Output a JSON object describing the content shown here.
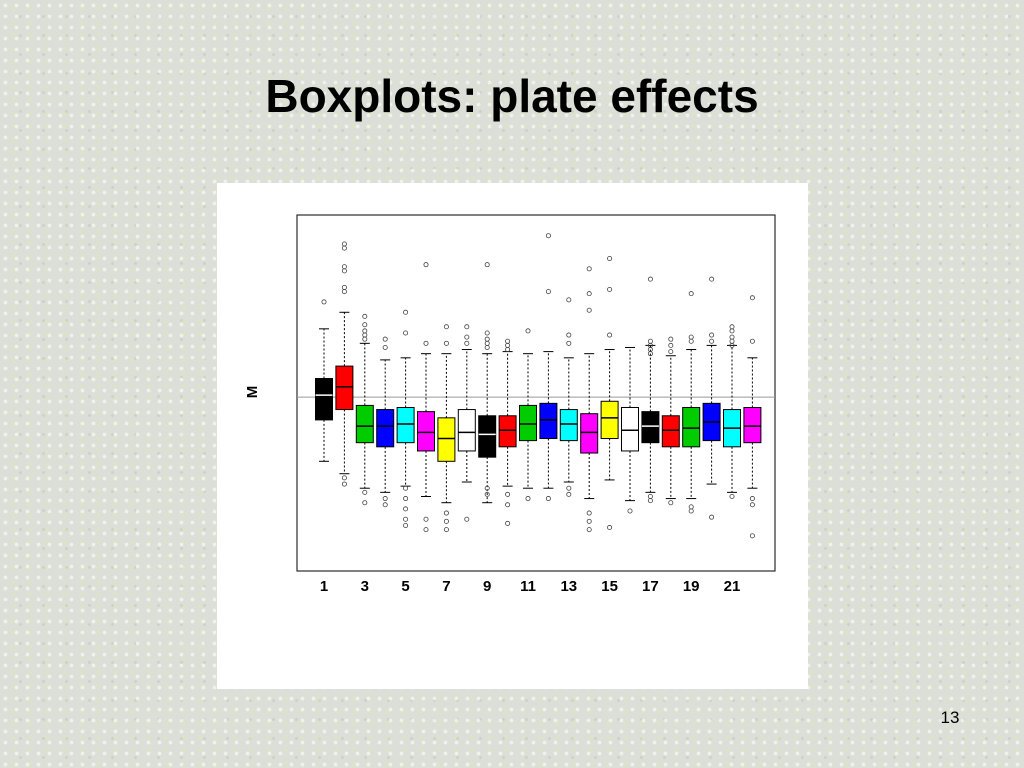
{
  "slide": {
    "title": "Boxplots: plate effects",
    "page_number": "13"
  },
  "chart_data": {
    "type": "boxplot",
    "title": "",
    "xlabel": "",
    "ylabel": "M",
    "ylim": [
      -4.2,
      4.4
    ],
    "reference_line": 0,
    "tick_labels": [
      "1",
      "3",
      "5",
      "7",
      "9",
      "11",
      "13",
      "15",
      "17",
      "19",
      "21"
    ],
    "series": [
      {
        "plate": 1,
        "color": "#000000",
        "min": -1.55,
        "q1": -0.55,
        "median": 0.05,
        "q3": 0.45,
        "max": 1.65,
        "outliers": [
          2.3
        ]
      },
      {
        "plate": 2,
        "color": "#ff0000",
        "min": -1.85,
        "q1": -0.3,
        "median": 0.25,
        "q3": 0.75,
        "max": 2.05,
        "outliers": [
          3.7,
          3.6,
          3.15,
          3.05,
          2.65,
          2.55,
          -1.95,
          -2.1
        ]
      },
      {
        "plate": 3,
        "color": "#00cc00",
        "min": -2.2,
        "q1": -1.1,
        "median": -0.7,
        "q3": -0.2,
        "max": 1.3,
        "outliers": [
          1.95,
          1.75,
          1.6,
          1.5,
          1.4,
          -2.3,
          -2.55
        ]
      },
      {
        "plate": 4,
        "color": "#0000ff",
        "min": -2.3,
        "q1": -1.2,
        "median": -0.7,
        "q3": -0.3,
        "max": 0.9,
        "outliers": [
          1.4,
          1.2,
          -2.45,
          -2.6
        ]
      },
      {
        "plate": 5,
        "color": "#00ffff",
        "min": -2.15,
        "q1": -1.1,
        "median": -0.65,
        "q3": -0.25,
        "max": 0.95,
        "outliers": [
          2.05,
          1.55,
          -2.2,
          -2.45,
          -2.7,
          -2.95,
          -3.1
        ]
      },
      {
        "plate": 6,
        "color": "#ff00ff",
        "min": -2.4,
        "q1": -1.3,
        "median": -0.85,
        "q3": -0.35,
        "max": 1.05,
        "outliers": [
          3.2,
          1.3,
          -2.95,
          -3.2
        ]
      },
      {
        "plate": 7,
        "color": "#ffff00",
        "min": -2.55,
        "q1": -1.55,
        "median": -1.0,
        "q3": -0.5,
        "max": 1.05,
        "outliers": [
          1.7,
          1.3,
          -2.8,
          -3.0,
          -3.2
        ]
      },
      {
        "plate": 8,
        "color": "#ffffff",
        "min": -2.05,
        "q1": -1.3,
        "median": -0.85,
        "q3": -0.3,
        "max": 1.15,
        "outliers": [
          1.7,
          1.45,
          1.3,
          -2.95
        ]
      },
      {
        "plate": 9,
        "color": "#000000",
        "min": -2.55,
        "q1": -1.45,
        "median": -0.9,
        "q3": -0.45,
        "max": 1.05,
        "outliers": [
          3.2,
          1.55,
          1.4,
          1.3,
          1.2,
          -2.2,
          -2.35
        ]
      },
      {
        "plate": 10,
        "color": "#ff0000",
        "min": -2.15,
        "q1": -1.2,
        "median": -0.8,
        "q3": -0.45,
        "max": 1.1,
        "outliers": [
          1.35,
          1.25,
          1.15,
          -2.35,
          -2.6,
          -3.05
        ]
      },
      {
        "plate": 11,
        "color": "#00cc00",
        "min": -2.2,
        "q1": -1.05,
        "median": -0.65,
        "q3": -0.2,
        "max": 1.05,
        "outliers": [
          1.6,
          -2.45
        ]
      },
      {
        "plate": 12,
        "color": "#0000ff",
        "min": -2.2,
        "q1": -1.0,
        "median": -0.55,
        "q3": -0.15,
        "max": 1.1,
        "outliers": [
          3.9,
          2.55,
          -2.45
        ]
      },
      {
        "plate": 13,
        "color": "#00ffff",
        "min": -2.05,
        "q1": -1.05,
        "median": -0.65,
        "q3": -0.3,
        "max": 0.95,
        "outliers": [
          2.35,
          1.5,
          1.3,
          -2.2,
          -2.35
        ]
      },
      {
        "plate": 14,
        "color": "#ff00ff",
        "min": -2.45,
        "q1": -1.35,
        "median": -0.85,
        "q3": -0.4,
        "max": 1.05,
        "outliers": [
          3.1,
          2.5,
          2.1,
          -2.8,
          -3.0,
          -3.2
        ]
      },
      {
        "plate": 15,
        "color": "#ffff00",
        "min": -2.0,
        "q1": -1.0,
        "median": -0.5,
        "q3": -0.1,
        "max": 1.15,
        "outliers": [
          3.35,
          2.6,
          1.5,
          -3.15
        ]
      },
      {
        "plate": 16,
        "color": "#ffffff",
        "min": -2.5,
        "q1": -1.3,
        "median": -0.8,
        "q3": -0.25,
        "max": 1.2,
        "outliers": [
          -2.75
        ]
      },
      {
        "plate": 17,
        "color": "#000000",
        "min": -2.3,
        "q1": -1.1,
        "median": -0.7,
        "q3": -0.35,
        "max": 1.25,
        "outliers": [
          2.85,
          1.35,
          1.25,
          1.15,
          1.05,
          -2.4,
          -2.5
        ]
      },
      {
        "plate": 18,
        "color": "#ff0000",
        "min": -2.45,
        "q1": -1.2,
        "median": -0.8,
        "q3": -0.45,
        "max": 1.0,
        "outliers": [
          1.4,
          1.25,
          1.1,
          -2.55
        ]
      },
      {
        "plate": 19,
        "color": "#00cc00",
        "min": -2.45,
        "q1": -1.2,
        "median": -0.75,
        "q3": -0.25,
        "max": 1.15,
        "outliers": [
          2.5,
          1.45,
          1.35,
          -2.65,
          -2.75
        ]
      },
      {
        "plate": 20,
        "color": "#0000ff",
        "min": -2.1,
        "q1": -1.05,
        "median": -0.6,
        "q3": -0.15,
        "max": 1.25,
        "outliers": [
          2.85,
          1.5,
          1.35,
          -2.9
        ]
      },
      {
        "plate": 21,
        "color": "#00ffff",
        "min": -2.3,
        "q1": -1.2,
        "median": -0.75,
        "q3": -0.3,
        "max": 1.25,
        "outliers": [
          1.7,
          1.6,
          1.45,
          1.35,
          1.25,
          -2.4
        ]
      },
      {
        "plate": 22,
        "color": "#ff00ff",
        "min": -2.2,
        "q1": -1.1,
        "median": -0.7,
        "q3": -0.25,
        "max": 0.95,
        "outliers": [
          2.4,
          1.35,
          -2.45,
          -2.6,
          -3.35
        ]
      }
    ]
  }
}
